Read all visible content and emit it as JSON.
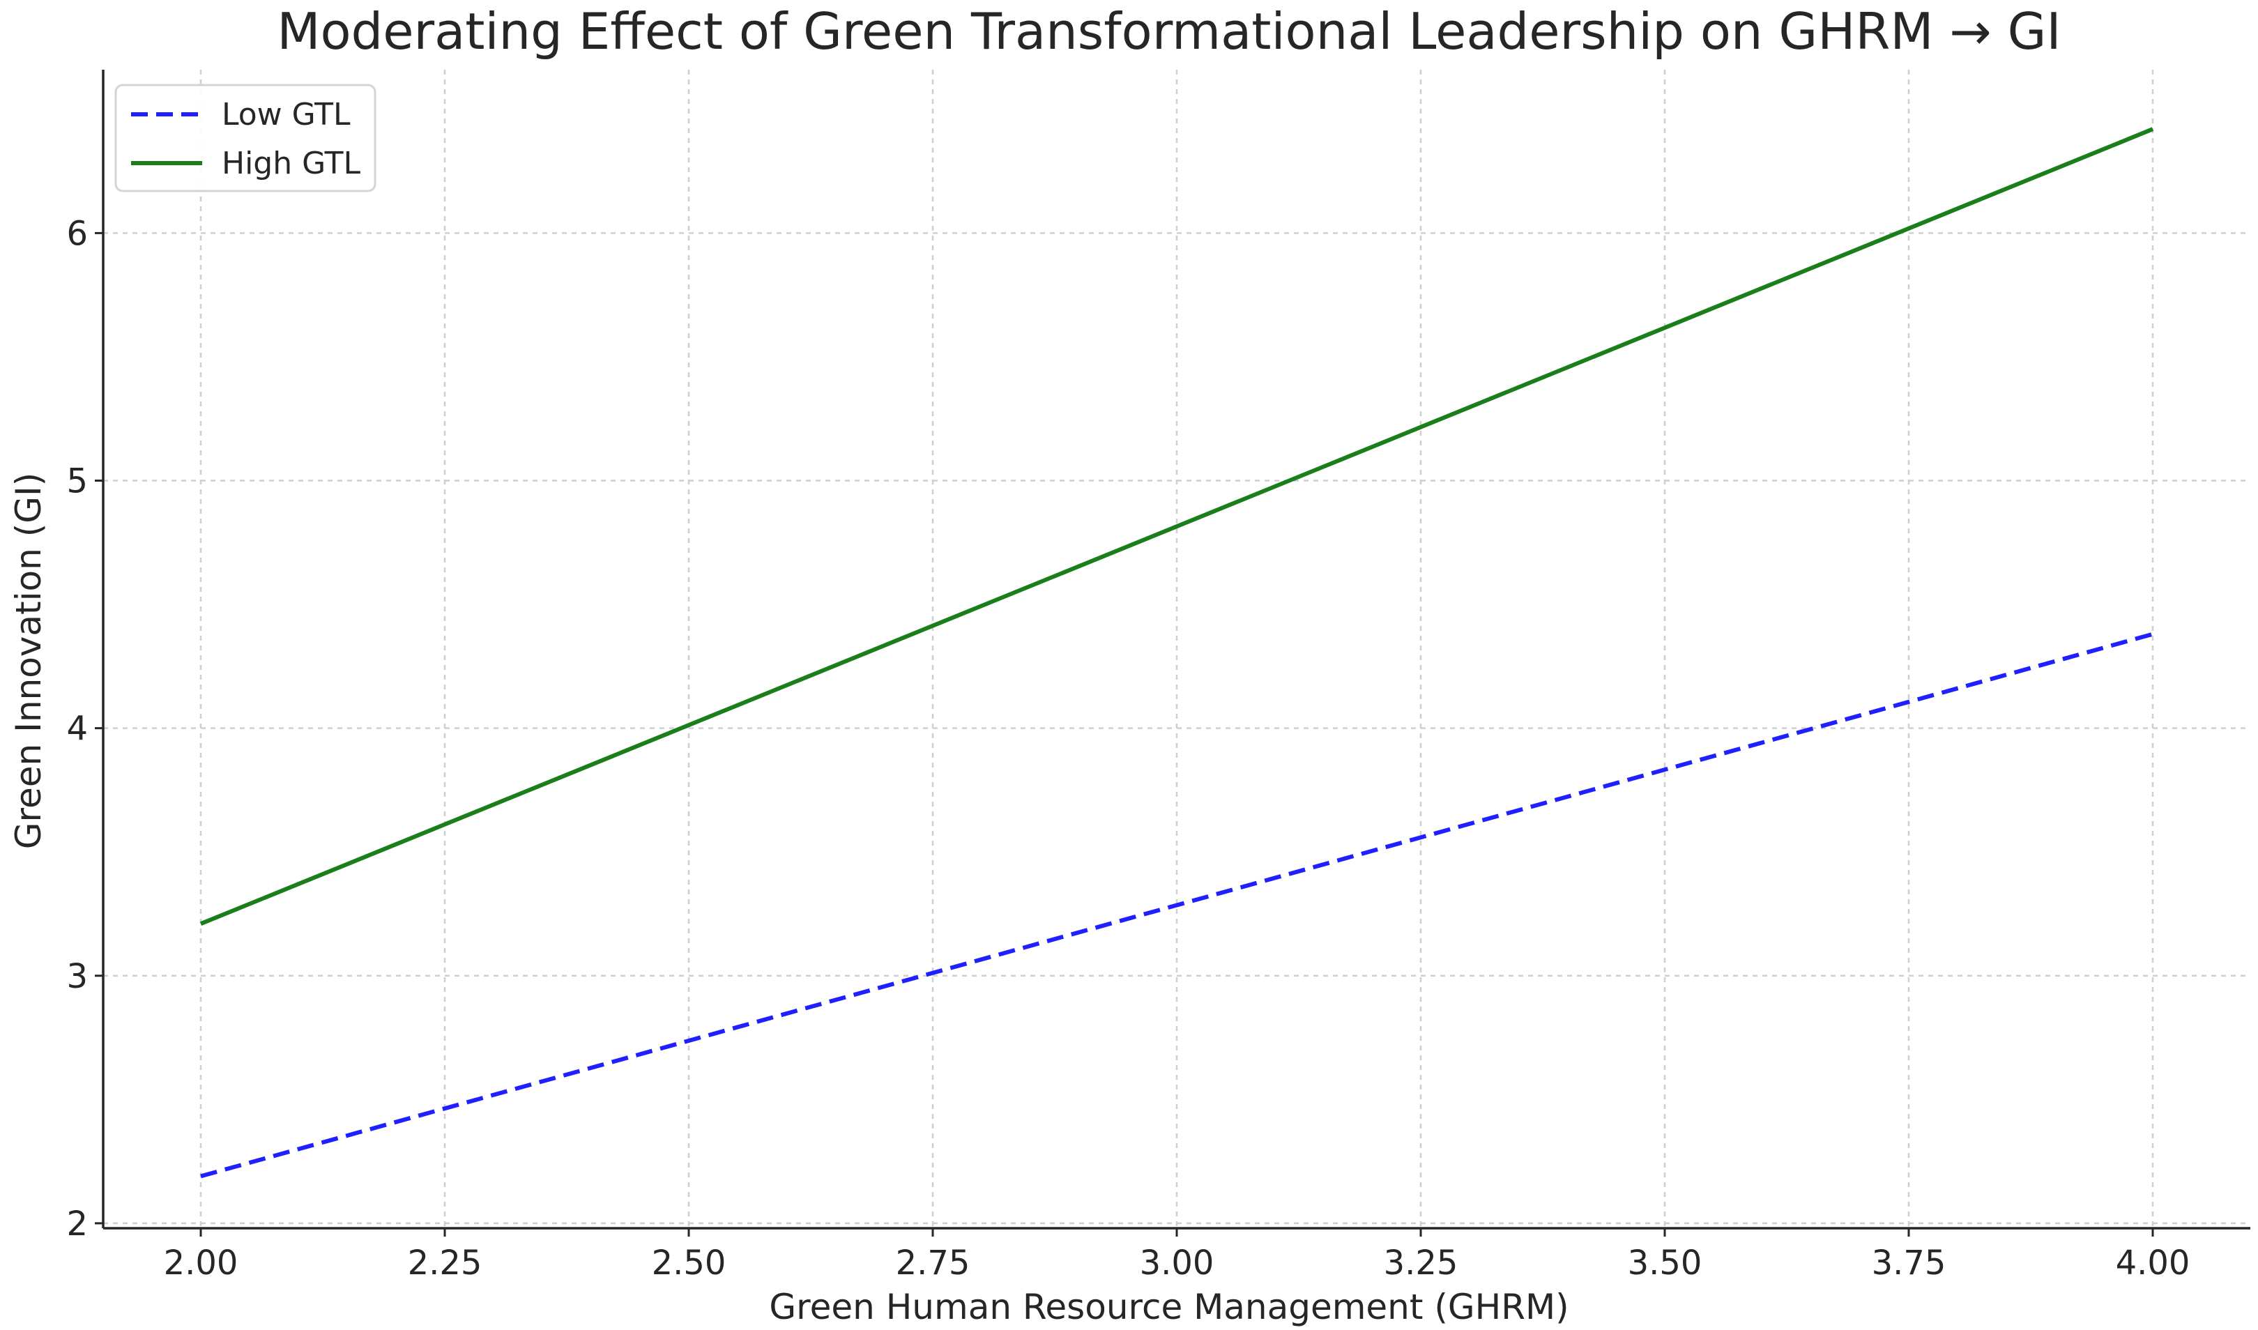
{
  "chart_data": {
    "type": "line",
    "title": "Moderating Effect of Green Transformational Leadership on GHRM → GI",
    "xlabel": "Green Human Resource Management (GHRM)",
    "ylabel": "Green Innovation (GI)",
    "xlim": [
      1.9,
      4.1
    ],
    "ylim": [
      1.98,
      6.66
    ],
    "x_ticks": [
      2.0,
      2.25,
      2.5,
      2.75,
      3.0,
      3.25,
      3.5,
      3.75,
      4.0
    ],
    "x_tick_labels": [
      "2.00",
      "2.25",
      "2.50",
      "2.75",
      "3.00",
      "3.25",
      "3.50",
      "3.75",
      "4.00"
    ],
    "y_ticks": [
      2,
      3,
      4,
      5,
      6
    ],
    "y_tick_labels": [
      "2",
      "3",
      "4",
      "5",
      "6"
    ],
    "grid": true,
    "legend_position": "top-left",
    "series": [
      {
        "name": "Low GTL",
        "color": "#1f1fff",
        "line_style": "dashed",
        "x": [
          2.0,
          4.0
        ],
        "y": [
          2.19,
          4.38
        ]
      },
      {
        "name": "High GTL",
        "color": "#1a7f1a",
        "line_style": "solid",
        "x": [
          2.0,
          4.0
        ],
        "y": [
          3.21,
          6.42
        ]
      }
    ]
  }
}
